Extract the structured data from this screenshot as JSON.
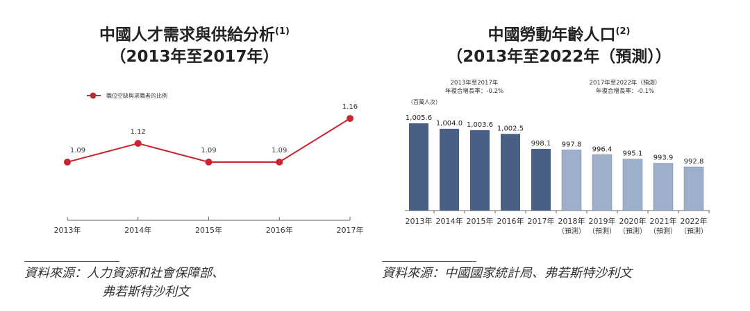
{
  "chart_data": [
    {
      "type": "line",
      "title": "中國人才需求與供給分析",
      "title_note": "(1)",
      "subtitle": "（2013年至2017年）",
      "legend": "職位空缺與求職者的比例",
      "legend_position": "top-left",
      "categories": [
        "2013年",
        "2014年",
        "2015年",
        "2016年",
        "2017年"
      ],
      "values": [
        1.09,
        1.12,
        1.09,
        1.09,
        1.16
      ],
      "value_labels": [
        "1.09",
        "1.12",
        "1.09",
        "1.09",
        "1.16"
      ],
      "color": "#c9242f",
      "ylim": [
        0.99,
        1.185
      ]
    },
    {
      "type": "bar",
      "title": "中國勞動年齡人口",
      "title_note": "(2)",
      "subtitle": "（2013年至2022年（預測））",
      "ylabel": "（百萬人次）",
      "categories": [
        "2013年",
        "2014年",
        "2015年",
        "2016年",
        "2017年",
        "2018年",
        "2019年",
        "2020年",
        "2021年",
        "2022年"
      ],
      "category_notes": [
        "",
        "",
        "",
        "",
        "",
        "（預測）",
        "（預測）",
        "（預測）",
        "（預測）",
        "（預測）"
      ],
      "values": [
        1005.6,
        1004.0,
        1003.6,
        1002.5,
        998.1,
        997.8,
        996.4,
        995.1,
        993.9,
        992.8
      ],
      "value_labels": [
        "1,005.6",
        "1,004.0",
        "1,003.6",
        "1,002.5",
        "998.1",
        "997.8",
        "996.4",
        "995.1",
        "993.9",
        "992.8"
      ],
      "forecast": [
        false,
        false,
        false,
        false,
        false,
        true,
        true,
        true,
        true,
        true
      ],
      "colors": {
        "actual": "#4a5f86",
        "forecast": "#9dafcb"
      },
      "ylim": [
        980,
        1010
      ],
      "annotations": [
        {
          "period": "2013年至2017年",
          "text": "年複合增長率：-0.2%"
        },
        {
          "period": "2017年至2022年（預測）",
          "text": "年複合增長率：-0.1%"
        }
      ]
    }
  ],
  "sources": {
    "left": [
      "資料來源：人力資源和社會保障部、",
      "弗若斯特沙利文"
    ],
    "right": [
      "資料來源：中國國家統計局、弗若斯特沙利文"
    ]
  }
}
